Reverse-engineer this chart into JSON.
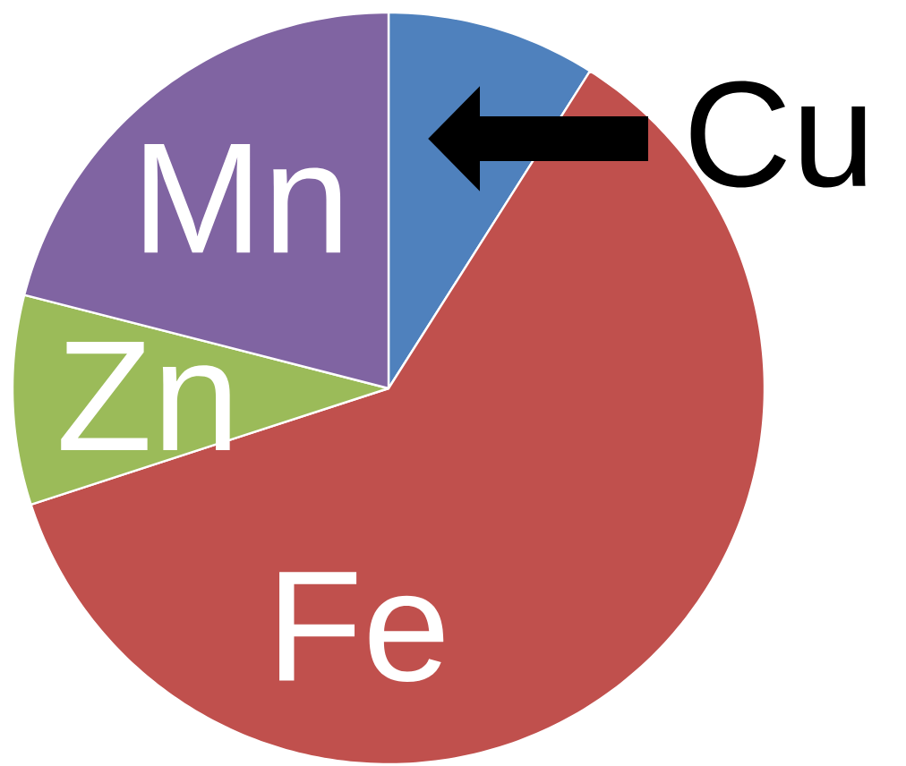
{
  "chart_data": {
    "type": "pie",
    "categories": [
      "Cu",
      "Fe",
      "Zn",
      "Mn"
    ],
    "values": [
      9,
      61,
      9,
      21
    ],
    "colors": [
      "#4f81bd",
      "#c0504d",
      "#9bbb59",
      "#8064a2"
    ]
  }
}
